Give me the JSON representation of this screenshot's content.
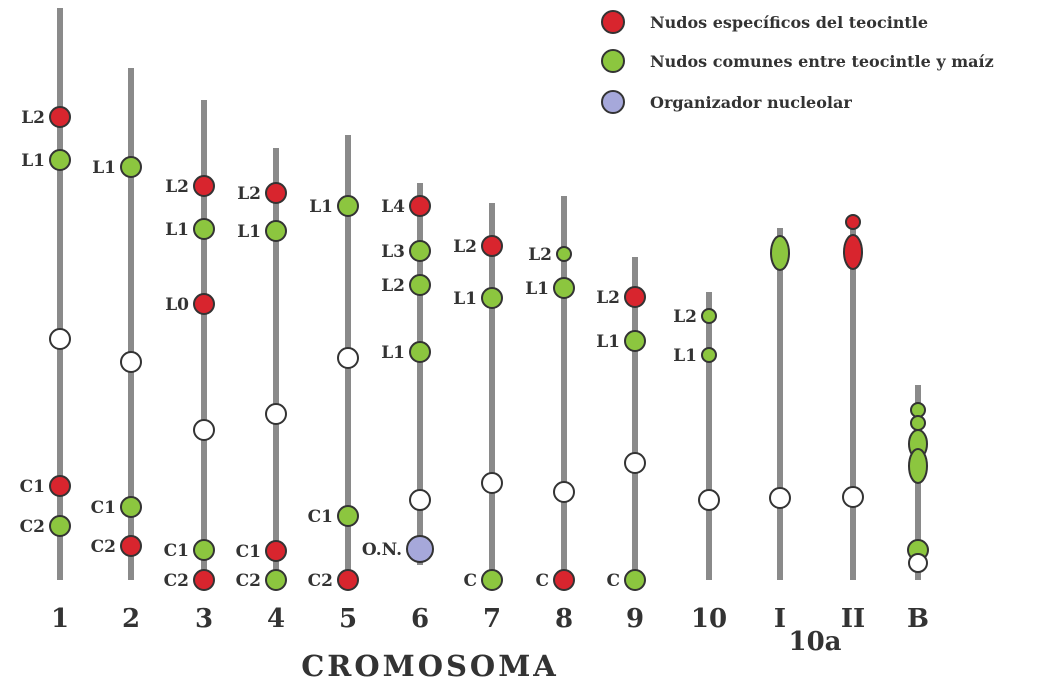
{
  "legend": [
    {
      "key": "red",
      "text": "Nudos específicos del teocintle",
      "color": "#d8252e"
    },
    {
      "key": "green",
      "text": "Nudos comunes entre teocintle y maíz",
      "color": "#8cc63f"
    },
    {
      "key": "blue",
      "text": "Organizador nucleolar",
      "color": "#a6a8da"
    }
  ],
  "colors": {
    "red": "#d8252e",
    "green": "#8cc63f",
    "blue": "#a6a8da",
    "white": "#ffffff",
    "line": "#8a8a8a",
    "stroke": "#333333"
  },
  "title": "CROMOSOMA",
  "sublabel": "10a",
  "chromosomes": [
    {
      "label": "1",
      "knobs": [
        {
          "label": "L2",
          "color": "red"
        },
        {
          "label": "L1",
          "color": "green"
        },
        {
          "label": "",
          "color": "white"
        },
        {
          "label": "C1",
          "color": "red"
        },
        {
          "label": "C2",
          "color": "green"
        }
      ]
    },
    {
      "label": "2",
      "knobs": [
        {
          "label": "L1",
          "color": "green"
        },
        {
          "label": "",
          "color": "white"
        },
        {
          "label": "C1",
          "color": "green"
        },
        {
          "label": "C2",
          "color": "red"
        }
      ]
    },
    {
      "label": "3",
      "knobs": [
        {
          "label": "L2",
          "color": "red"
        },
        {
          "label": "L1",
          "color": "green"
        },
        {
          "label": "L0",
          "color": "red"
        },
        {
          "label": "",
          "color": "white"
        },
        {
          "label": "C1",
          "color": "green"
        },
        {
          "label": "C2",
          "color": "red"
        }
      ]
    },
    {
      "label": "4",
      "knobs": [
        {
          "label": "L2",
          "color": "red"
        },
        {
          "label": "L1",
          "color": "green"
        },
        {
          "label": "",
          "color": "white"
        },
        {
          "label": "C1",
          "color": "red"
        },
        {
          "label": "C2",
          "color": "green"
        }
      ]
    },
    {
      "label": "5",
      "knobs": [
        {
          "label": "L1",
          "color": "green"
        },
        {
          "label": "",
          "color": "white"
        },
        {
          "label": "C1",
          "color": "green"
        },
        {
          "label": "C2",
          "color": "red"
        }
      ]
    },
    {
      "label": "6",
      "knobs": [
        {
          "label": "L4",
          "color": "red"
        },
        {
          "label": "L3",
          "color": "green"
        },
        {
          "label": "L2",
          "color": "green"
        },
        {
          "label": "L1",
          "color": "green"
        },
        {
          "label": "",
          "color": "white"
        },
        {
          "label": "O.N.",
          "color": "blue"
        }
      ]
    },
    {
      "label": "7",
      "knobs": [
        {
          "label": "L2",
          "color": "red"
        },
        {
          "label": "L1",
          "color": "green"
        },
        {
          "label": "",
          "color": "white"
        },
        {
          "label": "C",
          "color": "green"
        }
      ]
    },
    {
      "label": "8",
      "knobs": [
        {
          "label": "L2",
          "color": "green"
        },
        {
          "label": "L1",
          "color": "green"
        },
        {
          "label": "",
          "color": "white"
        },
        {
          "label": "C",
          "color": "red"
        }
      ]
    },
    {
      "label": "9",
      "knobs": [
        {
          "label": "L2",
          "color": "red"
        },
        {
          "label": "L1",
          "color": "green"
        },
        {
          "label": "",
          "color": "white"
        },
        {
          "label": "C",
          "color": "green"
        }
      ]
    },
    {
      "label": "10",
      "knobs": [
        {
          "label": "L2",
          "color": "green"
        },
        {
          "label": "L1",
          "color": "green"
        },
        {
          "label": "",
          "color": "white"
        }
      ]
    },
    {
      "label": "I",
      "knobs": [
        {
          "label": "",
          "color": "green"
        },
        {
          "label": "",
          "color": "white"
        }
      ]
    },
    {
      "label": "II",
      "knobs": [
        {
          "label": "",
          "color": "red"
        },
        {
          "label": "",
          "color": "red"
        },
        {
          "label": "",
          "color": "white"
        }
      ]
    },
    {
      "label": "B",
      "knobs": [
        {
          "label": "",
          "color": "green"
        },
        {
          "label": "",
          "color": "green"
        },
        {
          "label": "",
          "color": "green"
        },
        {
          "label": "",
          "color": "green"
        },
        {
          "label": "",
          "color": "green"
        },
        {
          "label": "",
          "color": "white"
        }
      ]
    }
  ]
}
